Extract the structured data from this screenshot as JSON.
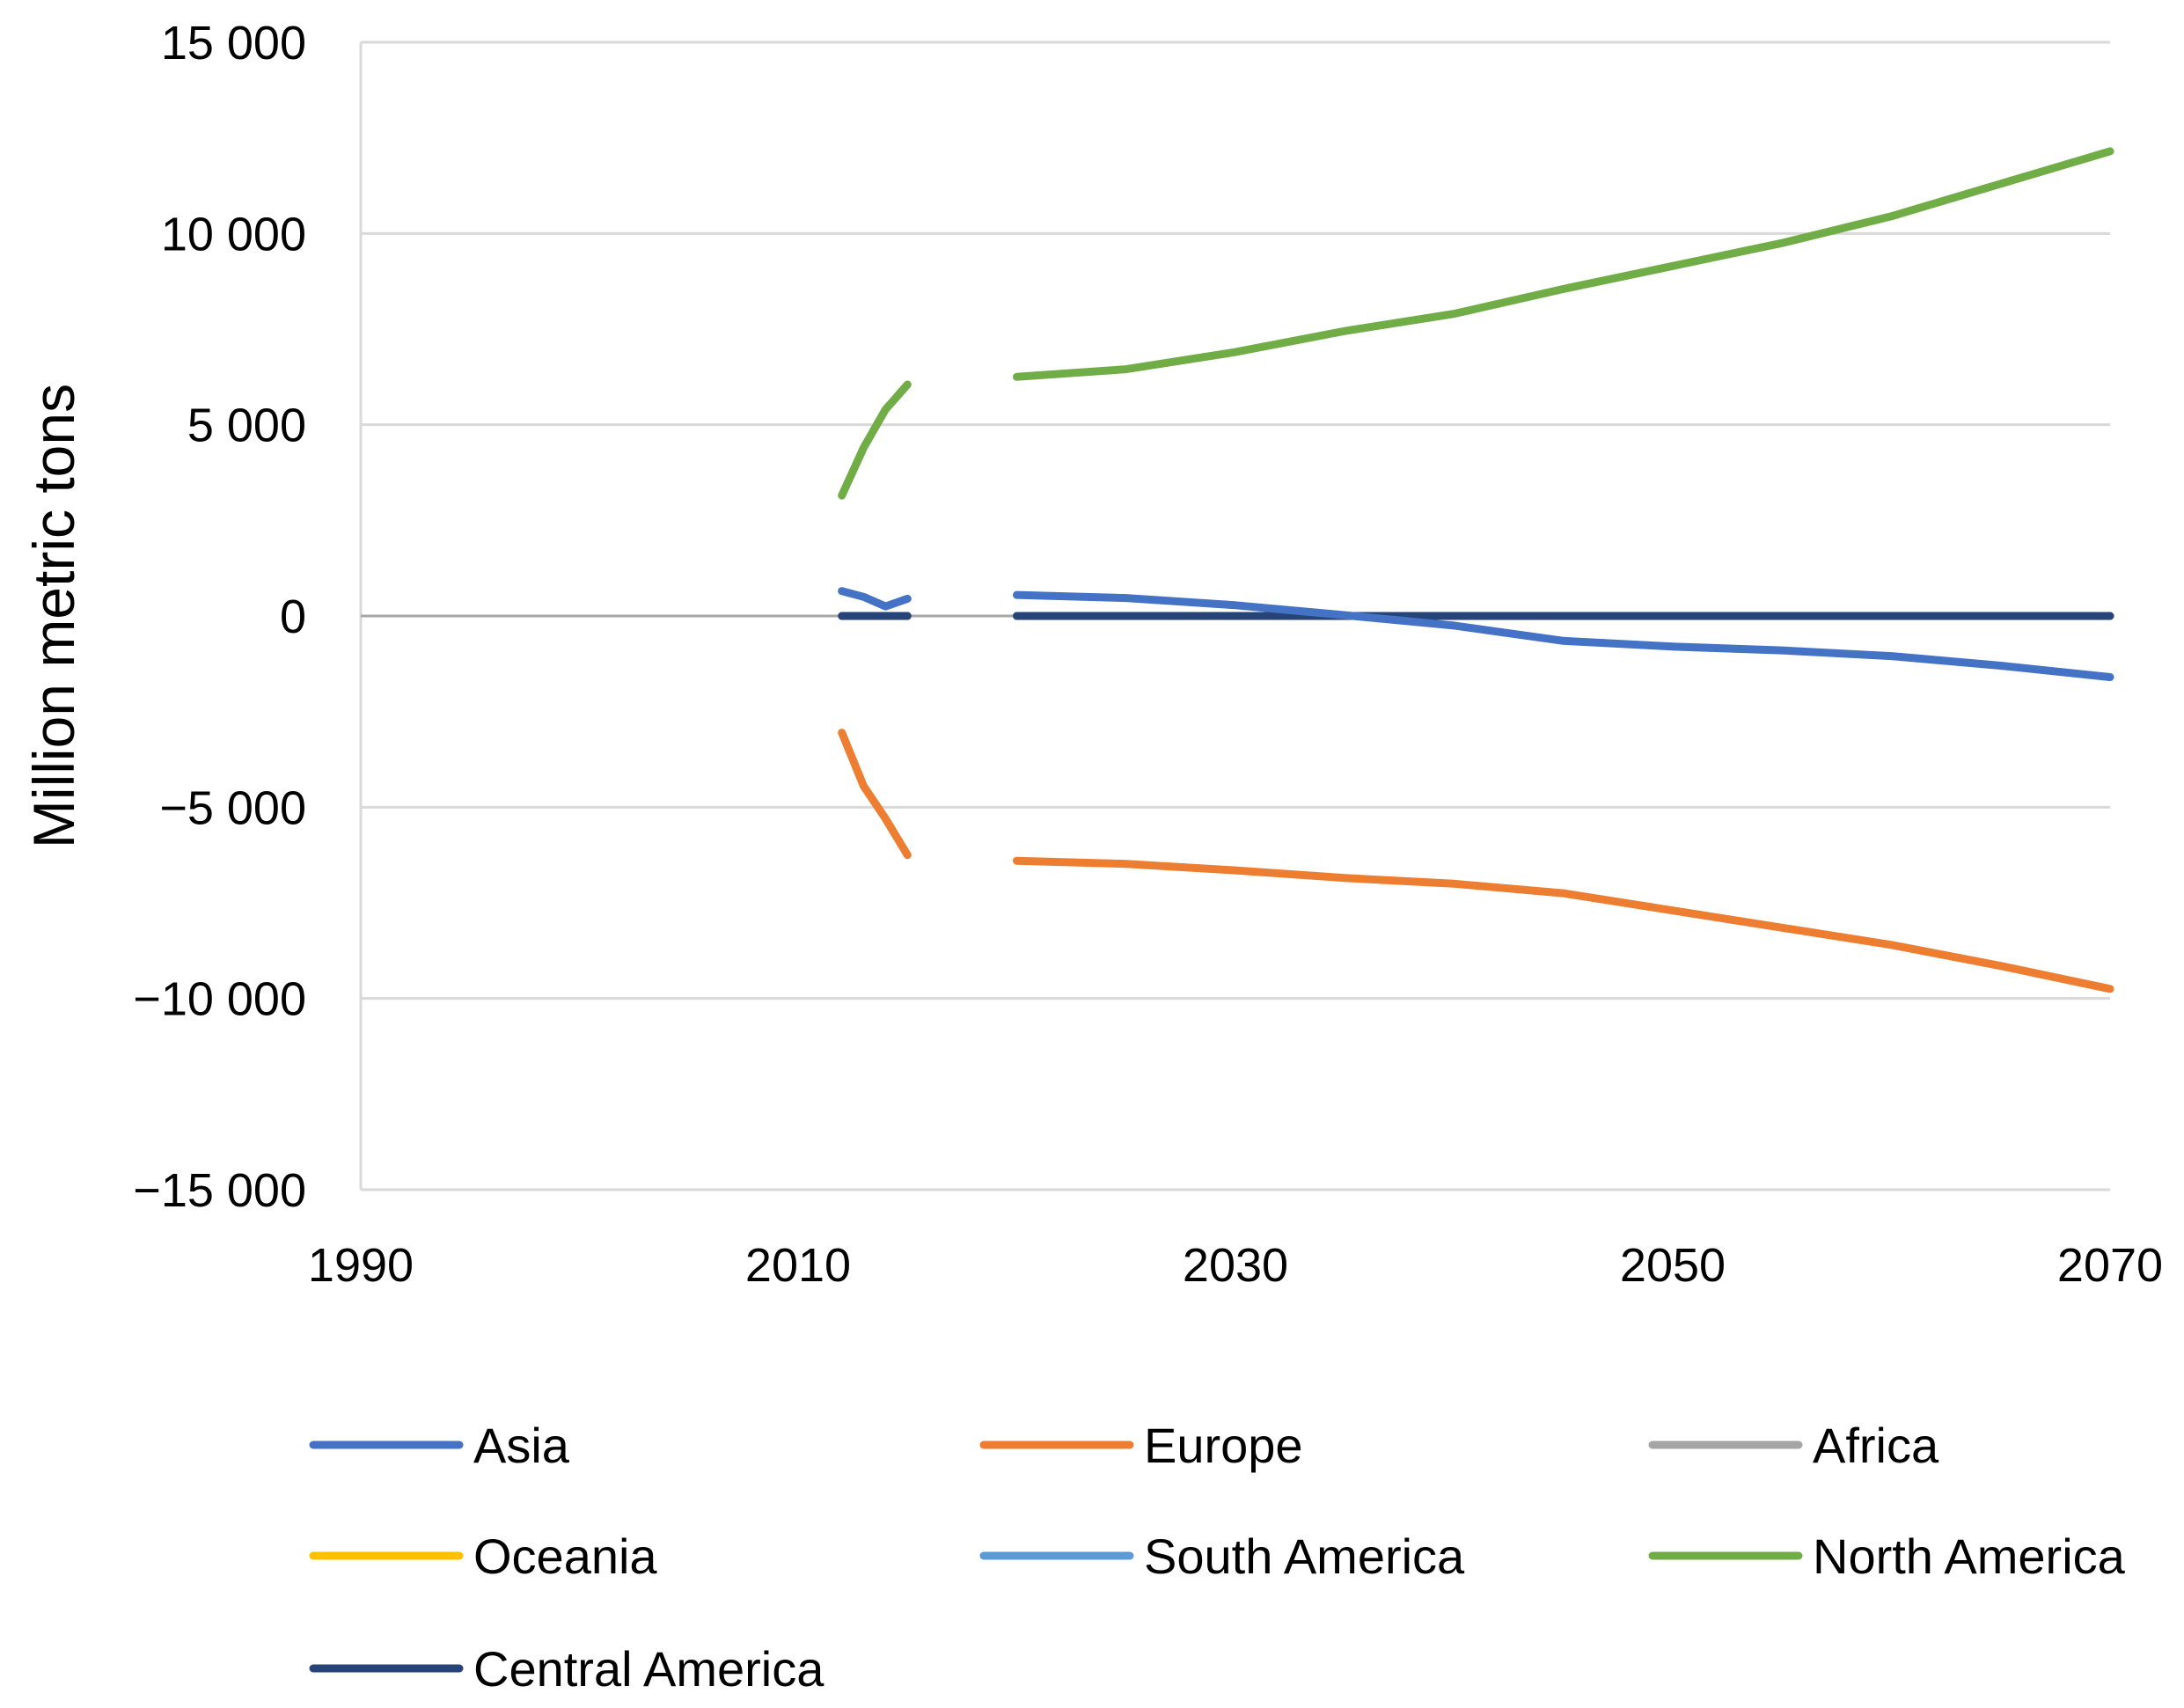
{
  "chart_data": {
    "type": "line",
    "title": "",
    "xlabel": "",
    "ylabel": "Million metric tons",
    "xlim": [
      1990,
      2070
    ],
    "ylim": [
      -15000,
      15000
    ],
    "x_ticks": [
      1990,
      2010,
      2030,
      2050,
      2070
    ],
    "x_tick_labels": [
      "1990",
      "2010",
      "2030",
      "2050",
      "2070"
    ],
    "y_ticks": [
      15000,
      10000,
      5000,
      0,
      -5000,
      -10000,
      -15000
    ],
    "y_tick_labels": [
      "15 000",
      "10 000",
      "5 000",
      "0",
      "−5 000",
      "−10 000",
      "−15 000"
    ],
    "grid": true,
    "legend_position": "bottom",
    "series": [
      {
        "name": "Asia",
        "color": "#4472C4",
        "segments": [
          [
            [
              2012,
              650
            ],
            [
              2013,
              500
            ],
            [
              2014,
              250
            ],
            [
              2015,
              450
            ]
          ],
          [
            [
              2020,
              550
            ],
            [
              2025,
              470
            ],
            [
              2030,
              280
            ],
            [
              2035,
              20
            ],
            [
              2040,
              -250
            ],
            [
              2045,
              -650
            ],
            [
              2050,
              -800
            ],
            [
              2055,
              -900
            ],
            [
              2060,
              -1050
            ],
            [
              2065,
              -1300
            ],
            [
              2070,
              -1600
            ]
          ]
        ]
      },
      {
        "name": "Europe",
        "color": "#ED7D31",
        "segments": [
          [
            [
              2012,
              -3050
            ],
            [
              2013,
              -4450
            ],
            [
              2014,
              -5300
            ],
            [
              2015,
              -6250
            ]
          ],
          [
            [
              2020,
              -6400
            ],
            [
              2025,
              -6480
            ],
            [
              2030,
              -6650
            ],
            [
              2035,
              -6850
            ],
            [
              2040,
              -7000
            ],
            [
              2045,
              -7250
            ],
            [
              2050,
              -7700
            ],
            [
              2055,
              -8150
            ],
            [
              2060,
              -8600
            ],
            [
              2065,
              -9150
            ],
            [
              2070,
              -9750
            ]
          ]
        ]
      },
      {
        "name": "Africa",
        "color": "#A5A5A5",
        "segments": [
          [
            [
              2012,
              0
            ],
            [
              2015,
              0
            ]
          ],
          [
            [
              2020,
              0
            ],
            [
              2070,
              0
            ]
          ]
        ]
      },
      {
        "name": "Oceania",
        "color": "#FFC000",
        "segments": [
          [
            [
              2012,
              0
            ],
            [
              2015,
              0
            ]
          ],
          [
            [
              2020,
              0
            ],
            [
              2070,
              0
            ]
          ]
        ]
      },
      {
        "name": "South America",
        "color": "#5B9BD5",
        "segments": [
          [
            [
              2012,
              0
            ],
            [
              2015,
              0
            ]
          ],
          [
            [
              2020,
              0
            ],
            [
              2070,
              0
            ]
          ]
        ]
      },
      {
        "name": "North America",
        "color": "#70AD47",
        "segments": [
          [
            [
              2012,
              3150
            ],
            [
              2013,
              4400
            ],
            [
              2014,
              5400
            ],
            [
              2015,
              6050
            ]
          ],
          [
            [
              2020,
              6250
            ],
            [
              2025,
              6450
            ],
            [
              2030,
              6900
            ],
            [
              2035,
              7450
            ],
            [
              2040,
              7900
            ],
            [
              2045,
              8550
            ],
            [
              2050,
              9150
            ],
            [
              2055,
              9750
            ],
            [
              2060,
              10450
            ],
            [
              2065,
              11300
            ],
            [
              2070,
              12150
            ]
          ]
        ]
      },
      {
        "name": "Central America",
        "color": "#264478",
        "segments": [
          [
            [
              2012,
              0
            ],
            [
              2015,
              0
            ]
          ],
          [
            [
              2020,
              0
            ],
            [
              2070,
              0
            ]
          ]
        ]
      }
    ]
  }
}
